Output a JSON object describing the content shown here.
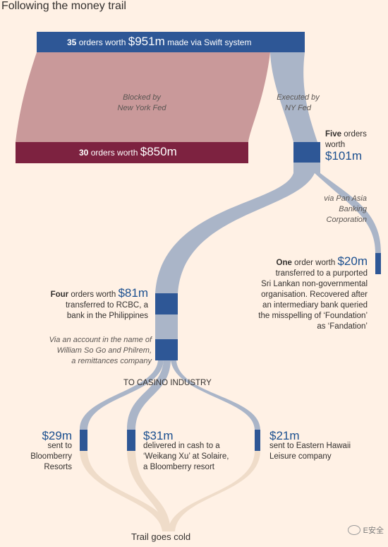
{
  "title": "Following the money trail",
  "top_bar": {
    "prefix": "35",
    "mid": "orders worth",
    "amount": "$951m",
    "suffix": "made via Swift system"
  },
  "blocked": {
    "label_line1": "Blocked by",
    "label_line2": "New York Fed"
  },
  "blocked_bar": {
    "prefix": "30",
    "mid": "orders worth",
    "amount": "$850m"
  },
  "executed": {
    "line1": "Executed by",
    "line2": "NY Fed"
  },
  "five": {
    "prefix": "Five",
    "line1": "orders",
    "line2": "worth",
    "amount": "$101m"
  },
  "pan_asia": {
    "line1": "via Pan Asia",
    "line2": "Banking",
    "line3": "Corporation"
  },
  "one": {
    "prefix": "One",
    "mid": "order worth",
    "amount": "$20m",
    "lines": [
      "transferred to a purported",
      "Sri Lankan non-governmental",
      "organisation. Recovered after",
      "an intermediary bank queried",
      "the misspelling of ‘Foundation’",
      "as ‘Fandation’"
    ]
  },
  "four": {
    "prefix": "Four",
    "mid": "orders worth",
    "amount": "$81m",
    "line1": "transferred to RCBC, a",
    "line2": "bank in the Philippines"
  },
  "via_account": {
    "line1": "Via an account in the name of",
    "line2": "William So Go and Philrem,",
    "line3": "a remittances company"
  },
  "casino": "TO CASINO INDUSTRY",
  "end1": {
    "amount": "$29m",
    "line1": "sent to",
    "line2": "Bloomberry",
    "line3": "Resorts"
  },
  "end2": {
    "amount": "$31m",
    "line1": "delivered in cash to a",
    "line2": "‘Weikang Xu’ at Solaire,",
    "line3": "a Bloomberry resort"
  },
  "end3": {
    "amount": "$21m",
    "line1": "sent to Eastern Hawaii",
    "line2": "Leisure company"
  },
  "cold": "Trail goes cold",
  "watermark": "E安全",
  "colors": {
    "bg": "#fff1e5",
    "blue": "#2e5796",
    "flow": "#aab5c8",
    "blocked": "#c9999a",
    "maroon": "#7d2240",
    "cold": "#efdcc9"
  }
}
